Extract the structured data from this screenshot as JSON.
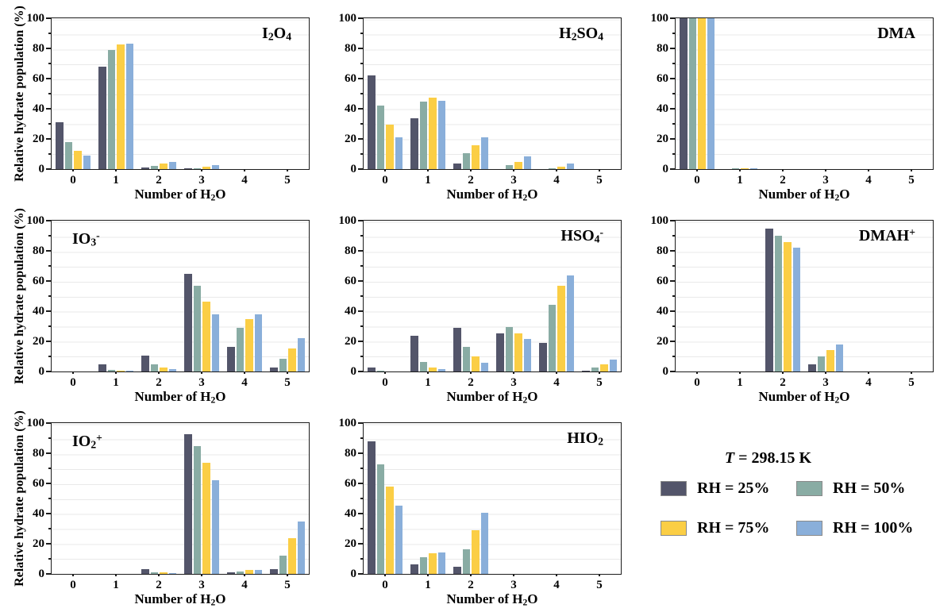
{
  "figure": {
    "ylabel": "Relative hydrate population (%)",
    "xlabel": "Number of H_2O",
    "ymax": 100,
    "ytick_step_minor": 10,
    "ytick_step_major": 20,
    "categories": [
      "0",
      "1",
      "2",
      "3",
      "4",
      "5"
    ],
    "grid_color": "#e9e9e9",
    "axis_color": "#1c1c1c",
    "background": "#ffffff"
  },
  "legend": {
    "temperature_prefix": "T",
    "temperature_rest": " = 298.15 K",
    "items": [
      {
        "label": "RH = 25%",
        "color": "#53556a"
      },
      {
        "label": "RH = 50%",
        "color": "#89aca4"
      },
      {
        "label": "RH = 75%",
        "color": "#fbce45"
      },
      {
        "label": "RH = 100%",
        "color": "#8aafda"
      }
    ]
  },
  "chart_data": [
    {
      "type": "bar",
      "title": "I_2O_4",
      "title_pos": "right",
      "xlabel": "Number of H_2O",
      "ylabel": "Relative hydrate population (%)",
      "ylim": [
        0,
        100
      ],
      "categories": [
        "0",
        "1",
        "2",
        "3",
        "4",
        "5"
      ],
      "series": [
        {
          "name": "RH = 25%",
          "values": [
            31,
            68,
            1,
            0.7,
            0,
            0
          ]
        },
        {
          "name": "RH = 50%",
          "values": [
            18,
            79,
            2.2,
            0.7,
            0,
            0
          ]
        },
        {
          "name": "RH = 75%",
          "values": [
            12,
            82.5,
            3.8,
            1.7,
            0,
            0
          ]
        },
        {
          "name": "RH = 100%",
          "values": [
            9,
            83,
            5,
            2.8,
            0,
            0
          ]
        }
      ]
    },
    {
      "type": "bar",
      "title": "H_2SO_4",
      "title_pos": "right",
      "xlabel": "Number of H_2O",
      "ylim": [
        0,
        100
      ],
      "categories": [
        "0",
        "1",
        "2",
        "3",
        "4",
        "5"
      ],
      "series": [
        {
          "name": "RH = 25%",
          "values": [
            62,
            33.5,
            3.7,
            0,
            0,
            0
          ]
        },
        {
          "name": "RH = 50%",
          "values": [
            42,
            45,
            10.5,
            2.5,
            0.5,
            0
          ]
        },
        {
          "name": "RH = 75%",
          "values": [
            29.5,
            47.5,
            16,
            5,
            1.5,
            0
          ]
        },
        {
          "name": "RH = 100%",
          "values": [
            21,
            45.5,
            21,
            8.5,
            3.5,
            0
          ]
        }
      ]
    },
    {
      "type": "bar",
      "title": "DMA",
      "title_pos": "right",
      "xlabel": "Number of H_2O",
      "ylim": [
        0,
        100
      ],
      "categories": [
        "0",
        "1",
        "2",
        "3",
        "4",
        "5"
      ],
      "series": [
        {
          "name": "RH = 25%",
          "values": [
            100,
            0,
            0,
            0,
            0,
            0
          ]
        },
        {
          "name": "RH = 50%",
          "values": [
            100,
            0.3,
            0,
            0,
            0,
            0
          ]
        },
        {
          "name": "RH = 75%",
          "values": [
            100,
            0.3,
            0,
            0,
            0,
            0
          ]
        },
        {
          "name": "RH = 100%",
          "values": [
            100,
            0.6,
            0,
            0,
            0,
            0
          ]
        }
      ]
    },
    {
      "type": "bar",
      "title": "IO_3^-",
      "title_pos": "left",
      "xlabel": "Number of H_2O",
      "ylabel": "Relative hydrate population (%)",
      "ylim": [
        0,
        100
      ],
      "categories": [
        "0",
        "1",
        "2",
        "3",
        "4",
        "5"
      ],
      "series": [
        {
          "name": "RH = 25%",
          "values": [
            0,
            5,
            10.5,
            65,
            16.5,
            2.5
          ]
        },
        {
          "name": "RH = 50%",
          "values": [
            0,
            1,
            4.5,
            57,
            29,
            8.5
          ]
        },
        {
          "name": "RH = 75%",
          "values": [
            0,
            0.3,
            2.5,
            46.5,
            35,
            15.5
          ]
        },
        {
          "name": "RH = 100%",
          "values": [
            0,
            0.3,
            1.5,
            38,
            38,
            22
          ]
        }
      ]
    },
    {
      "type": "bar",
      "title": "HSO_4^-",
      "title_pos": "right",
      "xlabel": "Number of H_2O",
      "ylim": [
        0,
        100
      ],
      "categories": [
        "0",
        "1",
        "2",
        "3",
        "4",
        "5"
      ],
      "series": [
        {
          "name": "RH = 25%",
          "values": [
            2.5,
            23.5,
            29,
            25.5,
            19,
            0.5
          ]
        },
        {
          "name": "RH = 50%",
          "values": [
            0.3,
            6.5,
            16.5,
            29.5,
            44,
            2.5
          ]
        },
        {
          "name": "RH = 75%",
          "values": [
            0,
            2.5,
            10,
            25.5,
            57,
            5
          ]
        },
        {
          "name": "RH = 100%",
          "values": [
            0,
            1.5,
            6,
            21.5,
            63.5,
            8
          ]
        }
      ]
    },
    {
      "type": "bar",
      "title": "DMAH^+",
      "title_pos": "right",
      "xlabel": "Number of H_2O",
      "ylim": [
        0,
        100
      ],
      "categories": [
        "0",
        "1",
        "2",
        "3",
        "4",
        "5"
      ],
      "series": [
        {
          "name": "RH = 25%",
          "values": [
            0,
            0,
            94.5,
            5,
            0,
            0
          ]
        },
        {
          "name": "RH = 50%",
          "values": [
            0,
            0,
            90,
            10,
            0,
            0
          ]
        },
        {
          "name": "RH = 75%",
          "values": [
            0,
            0,
            86,
            14,
            0,
            0
          ]
        },
        {
          "name": "RH = 100%",
          "values": [
            0,
            0,
            82,
            18,
            0,
            0
          ]
        }
      ]
    },
    {
      "type": "bar",
      "title": "IO_2^+",
      "title_pos": "left",
      "xlabel": "Number of H_2O",
      "ylabel": "Relative hydrate population (%)",
      "ylim": [
        0,
        100
      ],
      "categories": [
        "0",
        "1",
        "2",
        "3",
        "4",
        "5"
      ],
      "series": [
        {
          "name": "RH = 25%",
          "values": [
            0,
            0,
            3,
            92.5,
            0.8,
            3.2
          ]
        },
        {
          "name": "RH = 50%",
          "values": [
            0,
            0,
            1.2,
            84.5,
            1.6,
            12
          ]
        },
        {
          "name": "RH = 75%",
          "values": [
            0,
            0,
            0.8,
            73.5,
            2.5,
            23.5
          ]
        },
        {
          "name": "RH = 100%",
          "values": [
            0,
            0,
            0.3,
            62,
            2.8,
            35
          ]
        }
      ]
    },
    {
      "type": "bar",
      "title": "HIO_2",
      "title_pos": "right",
      "xlabel": "Number of H_2O",
      "ylim": [
        0,
        100
      ],
      "categories": [
        "0",
        "1",
        "2",
        "3",
        "4",
        "5"
      ],
      "series": [
        {
          "name": "RH = 25%",
          "values": [
            88,
            6.5,
            5,
            0,
            0,
            0
          ]
        },
        {
          "name": "RH = 50%",
          "values": [
            72.5,
            11,
            16.5,
            0,
            0,
            0
          ]
        },
        {
          "name": "RH = 75%",
          "values": [
            58,
            13.5,
            29,
            0,
            0,
            0
          ]
        },
        {
          "name": "RH = 100%",
          "values": [
            45.5,
            14,
            40.5,
            0,
            0,
            0
          ]
        }
      ]
    }
  ]
}
